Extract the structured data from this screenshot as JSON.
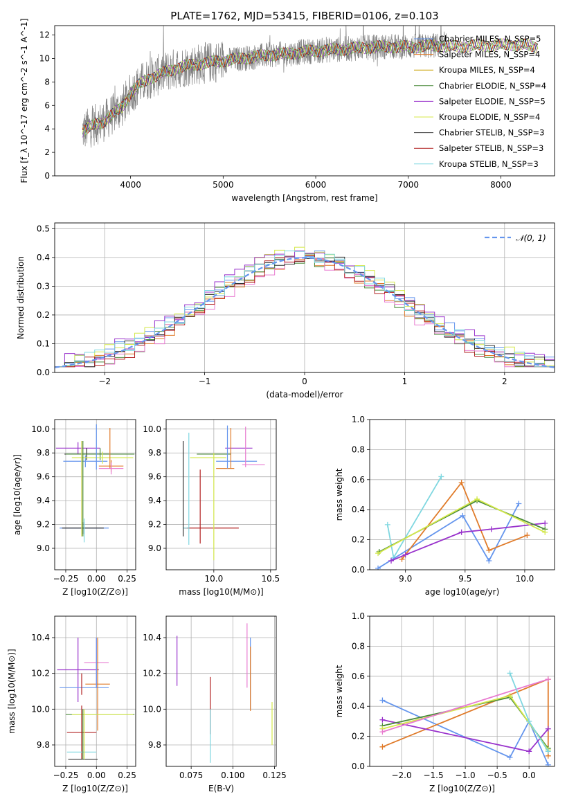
{
  "figure_title": "PLATE=1762, MJD=53415, FIBERID=0106, z=0.103",
  "chart_data": [
    {
      "type": "line",
      "title": "PLATE=1762, MJD=53415, FIBERID=0106, z=0.103",
      "xlabel": "wavelength [Angstrom, rest frame]",
      "ylabel": "Flux [f_λ 10^-17 erg cm^-2 s^-1 A^-1]",
      "xlim": [
        3180,
        8580
      ],
      "ylim": [
        0,
        12.8
      ],
      "xticks": [
        4000,
        5000,
        6000,
        7000,
        8000
      ],
      "yticks": [
        0,
        2,
        4,
        6,
        8,
        10,
        12
      ],
      "grid": false,
      "legend_position": "right",
      "spectrum_sketch": {
        "x": [
          3480,
          3600,
          3700,
          3800,
          3900,
          4000,
          4100,
          4200,
          4300,
          4500,
          4700,
          4900,
          5100,
          5300,
          5500,
          5700,
          5900,
          6100,
          6300,
          6500,
          6700,
          6900,
          7100,
          7300,
          7500,
          7700,
          7900,
          8100,
          8300,
          8400
        ],
        "y": [
          3.8,
          4.3,
          4.6,
          5.2,
          5.8,
          7.0,
          7.8,
          8.3,
          8.6,
          9.2,
          9.5,
          9.7,
          9.9,
          10.1,
          10.3,
          10.4,
          10.6,
          10.7,
          10.8,
          10.9,
          11.0,
          11.0,
          11.0,
          11.1,
          11.0,
          11.1,
          11.1,
          11.2,
          11.1,
          11.0
        ]
      },
      "series": [
        {
          "name": "Chabrier MILES, N_SSP=5",
          "color": "#6495ed"
        },
        {
          "name": "Salpeter MILES, N_SSP=4",
          "color": "#e07b2a"
        },
        {
          "name": "Kroupa MILES, N_SSP=4",
          "color": "#c8a000"
        },
        {
          "name": "Chabrier ELODIE, N_SSP=4",
          "color": "#4a8a3a"
        },
        {
          "name": "Salpeter ELODIE, N_SSP=5",
          "color": "#9932cc"
        },
        {
          "name": "Kroupa ELODIE, N_SSP=4",
          "color": "#d4e84a"
        },
        {
          "name": "Chabrier STELIB, N_SSP=3",
          "color": "#333333"
        },
        {
          "name": "Salpeter STELIB, N_SSP=3",
          "color": "#b22222"
        },
        {
          "name": "Kroupa STELIB, N_SSP=3",
          "color": "#7fd7e0"
        }
      ]
    },
    {
      "type": "line",
      "title": "",
      "xlabel": "(data-model)/error",
      "ylabel": "Normed distribution",
      "xlim": [
        -2.5,
        2.5
      ],
      "ylim": [
        0,
        0.52
      ],
      "xticks": [
        -2,
        -1,
        0,
        1,
        2
      ],
      "yticks": [
        0.0,
        0.1,
        0.2,
        0.3,
        0.4,
        0.5
      ],
      "grid": true,
      "legend_position": "top-right",
      "legend": [
        "N(0,1)"
      ],
      "gaussian": {
        "mean": 0,
        "sigma": 1,
        "color": "#6495ed",
        "style": "dashed"
      },
      "histograms": [
        {
          "color": "#6495ed",
          "offset": 0.01
        },
        {
          "color": "#e07b2a",
          "offset": -0.012
        },
        {
          "color": "#d4e84a",
          "offset": 0.015
        },
        {
          "color": "#4a8a3a",
          "offset": -0.006
        },
        {
          "color": "#9932cc",
          "offset": 0.022
        },
        {
          "color": "#e87ad0",
          "offset": -0.018
        },
        {
          "color": "#333333",
          "offset": 0.004
        },
        {
          "color": "#b22222",
          "offset": -0.01
        },
        {
          "color": "#7fd7e0",
          "offset": 0.008
        }
      ]
    },
    {
      "type": "scatter",
      "xlabel": "Z [log10(Z/Z⊙)]",
      "ylabel": "age [log10(age/yr)]",
      "xlim": [
        -0.34,
        0.32
      ],
      "ylim": [
        8.82,
        10.08
      ],
      "xticks": [
        -0.25,
        0.0,
        0.25
      ],
      "yticks": [
        9.0,
        9.2,
        9.4,
        9.6,
        9.8,
        10.0
      ],
      "grid": true,
      "points": [
        {
          "x": -0.15,
          "y": 9.84,
          "xerr": 0.18,
          "yerr": 0.05,
          "color": "#9932cc"
        },
        {
          "x": -0.09,
          "y": 9.73,
          "xerr": 0.18,
          "yerr": 0.05,
          "color": "#6495ed"
        },
        {
          "x": -0.08,
          "y": 9.79,
          "xerr": 0.18,
          "yerr": 0.05,
          "color": "#333333"
        },
        {
          "x": 0.03,
          "y": 9.79,
          "xerr": 0.28,
          "yerr": 0.05,
          "color": "#4a8a3a"
        },
        {
          "x": 0.05,
          "y": 9.76,
          "xerr": 0.25,
          "yerr": 0.05,
          "color": "#d4e84a"
        },
        {
          "x": 0.12,
          "y": 9.69,
          "xerr": 0.1,
          "yerr": 0.05,
          "color": "#e07b2a"
        },
        {
          "x": 0.12,
          "y": 9.67,
          "xerr": 0.1,
          "yerr": 0.05,
          "color": "#e87ad0"
        },
        {
          "x": -0.1,
          "y": 9.17,
          "xerr": 0.2,
          "yerr": 0.05,
          "color": "#6495ed"
        },
        {
          "x": -0.11,
          "y": 9.17,
          "xerr": 0.17,
          "yerr": 0.05,
          "color": "#333333"
        },
        {
          "x": -0.12,
          "y": 9.5,
          "xerr": 0.0,
          "yerr": 0.4,
          "color": "#9932cc"
        },
        {
          "x": -0.11,
          "y": 9.5,
          "xerr": 0.0,
          "yerr": 0.4,
          "color": "#4a8a3a"
        },
        {
          "x": 0.0,
          "y": 9.85,
          "xerr": 0.0,
          "yerr": 0.19,
          "color": "#6495ed"
        },
        {
          "x": 0.11,
          "y": 9.84,
          "xerr": 0.0,
          "yerr": 0.17,
          "color": "#e07b2a"
        },
        {
          "x": -0.12,
          "y": 9.5,
          "xerr": 0.0,
          "yerr": 0.4,
          "color": "#d4e84a"
        },
        {
          "x": -0.1,
          "y": 9.15,
          "xerr": 0.0,
          "yerr": 0.1,
          "color": "#7fd7e0"
        }
      ]
    },
    {
      "type": "scatter",
      "xlabel": "mass [log10(M/M⊙)]",
      "ylabel": "",
      "xlim": [
        9.58,
        10.55
      ],
      "ylim": [
        8.82,
        10.08
      ],
      "xticks": [
        10.0,
        10.5
      ],
      "yticks": [
        9.0,
        9.2,
        9.4,
        9.6,
        9.8,
        10.0
      ],
      "grid": true,
      "points": [
        {
          "x": 10.0,
          "y": 9.79,
          "xerr": 0.15,
          "yerr": 0.0,
          "color": "#4a8a3a"
        },
        {
          "x": 9.95,
          "y": 9.76,
          "xerr": 0.16,
          "yerr": 0.0,
          "color": "#d4e84a"
        },
        {
          "x": 10.2,
          "y": 9.73,
          "xerr": 0.18,
          "yerr": 0.0,
          "color": "#6495ed"
        },
        {
          "x": 10.22,
          "y": 9.84,
          "xerr": 0.12,
          "yerr": 0.0,
          "color": "#9932cc"
        },
        {
          "x": 10.35,
          "y": 9.7,
          "xerr": 0.1,
          "yerr": 0.0,
          "color": "#e87ad0"
        },
        {
          "x": 10.1,
          "y": 9.67,
          "xerr": 0.08,
          "yerr": 0.0,
          "color": "#e07b2a"
        },
        {
          "x": 9.98,
          "y": 9.17,
          "xerr": 0.24,
          "yerr": 0.0,
          "color": "#b22222"
        },
        {
          "x": 9.75,
          "y": 9.17,
          "xerr": 0.02,
          "yerr": 0.0,
          "color": "#7fd7e0"
        },
        {
          "x": 9.73,
          "y": 9.5,
          "xerr": 0.0,
          "yerr": 0.4,
          "color": "#333333"
        },
        {
          "x": 9.78,
          "y": 9.5,
          "xerr": 0.0,
          "yerr": 0.47,
          "color": "#7fd7e0"
        },
        {
          "x": 9.88,
          "y": 9.35,
          "xerr": 0.0,
          "yerr": 0.31,
          "color": "#b22222"
        },
        {
          "x": 10.0,
          "y": 9.35,
          "xerr": 0.0,
          "yerr": 0.45,
          "color": "#d4e84a"
        },
        {
          "x": 10.12,
          "y": 9.85,
          "xerr": 0.0,
          "yerr": 0.18,
          "color": "#6495ed"
        },
        {
          "x": 10.15,
          "y": 9.84,
          "xerr": 0.0,
          "yerr": 0.17,
          "color": "#e07b2a"
        },
        {
          "x": 10.28,
          "y": 9.85,
          "xerr": 0.0,
          "yerr": 0.17,
          "color": "#e87ad0"
        }
      ]
    },
    {
      "type": "line",
      "xlabel": "age log10(age/yr)",
      "ylabel": "mass weight",
      "xlim": [
        8.7,
        10.25
      ],
      "ylim": [
        0.0,
        1.0
      ],
      "xticks": [
        9.0,
        9.5,
        10.0
      ],
      "yticks": [
        0.0,
        0.2,
        0.4,
        0.6,
        0.8,
        1.0
      ],
      "grid": true,
      "series": [
        {
          "color": "#7fd7e0",
          "x": [
            8.85,
            8.9,
            9.3
          ],
          "y": [
            0.3,
            0.08,
            0.62
          ]
        },
        {
          "color": "#6495ed",
          "x": [
            8.77,
            9.48,
            9.7,
            9.95
          ],
          "y": [
            0.01,
            0.36,
            0.06,
            0.44
          ]
        },
        {
          "color": "#e07b2a",
          "x": [
            8.97,
            9.47,
            9.7,
            10.02
          ],
          "y": [
            0.07,
            0.58,
            0.13,
            0.23
          ]
        },
        {
          "color": "#9932cc",
          "x": [
            8.88,
            9.0,
            9.47,
            9.72,
            10.17
          ],
          "y": [
            0.06,
            0.1,
            0.25,
            0.27,
            0.31
          ]
        },
        {
          "color": "#4a8a3a",
          "x": [
            8.78,
            9.6,
            10.17
          ],
          "y": [
            0.12,
            0.46,
            0.27
          ]
        },
        {
          "color": "#d4e84a",
          "x": [
            8.77,
            9.6,
            10.17
          ],
          "y": [
            0.11,
            0.47,
            0.25
          ]
        }
      ]
    },
    {
      "type": "scatter",
      "xlabel": "Z [log10(Z/Z⊙)]",
      "ylabel": "mass [log10(M/M⊙)]",
      "xlim": [
        -0.34,
        0.32
      ],
      "ylim": [
        9.68,
        10.52
      ],
      "xticks": [
        -0.25,
        0.0,
        0.25
      ],
      "yticks": [
        9.8,
        10.0,
        10.2,
        10.4
      ],
      "grid": true,
      "points": [
        {
          "x": -0.15,
          "y": 10.22,
          "xerr": 0.17,
          "yerr": 0.18,
          "color": "#9932cc"
        },
        {
          "x": -0.1,
          "y": 10.12,
          "xerr": 0.2,
          "yerr": 0.0,
          "color": "#6495ed"
        },
        {
          "x": -0.12,
          "y": 10.14,
          "xerr": 0.0,
          "yerr": 0.06,
          "color": "#b22222"
        },
        {
          "x": 0.0,
          "y": 10.26,
          "xerr": 0.1,
          "yerr": 0.14,
          "color": "#e87ad0"
        },
        {
          "x": 0.01,
          "y": 10.14,
          "xerr": 0.1,
          "yerr": 0.26,
          "color": "#e07b2a"
        },
        {
          "x": 0.0,
          "y": 10.26,
          "xerr": 0.0,
          "yerr": 0.14,
          "color": "#6495ed"
        },
        {
          "x": 0.03,
          "y": 9.97,
          "xerr": 0.28,
          "yerr": 0.0,
          "color": "#4a8a3a"
        },
        {
          "x": 0.05,
          "y": 9.97,
          "xerr": 0.25,
          "yerr": 0.0,
          "color": "#d4e84a"
        },
        {
          "x": -0.12,
          "y": 9.87,
          "xerr": 0.12,
          "yerr": 0.15,
          "color": "#b22222"
        },
        {
          "x": -0.12,
          "y": 9.76,
          "xerr": 0.12,
          "yerr": 0.0,
          "color": "#7fd7e0"
        },
        {
          "x": -0.11,
          "y": 9.72,
          "xerr": 0.12,
          "yerr": 0.0,
          "color": "#333333"
        },
        {
          "x": -0.11,
          "y": 9.86,
          "xerr": 0.0,
          "yerr": 0.14,
          "color": "#4a8a3a"
        },
        {
          "x": -0.1,
          "y": 9.86,
          "xerr": 0.0,
          "yerr": 0.14,
          "color": "#d4e84a"
        }
      ]
    },
    {
      "type": "scatter",
      "xlabel": "E(B-V)",
      "ylabel": "",
      "xlim": [
        0.06,
        0.126
      ],
      "ylim": [
        9.68,
        10.52
      ],
      "xticks": [
        0.075,
        0.1,
        0.125
      ],
      "yticks": [
        9.8,
        10.0,
        10.2,
        10.4
      ],
      "grid": true,
      "points": [
        {
          "x": 0.0665,
          "y": 10.27,
          "yerr": 0.14,
          "color": "#9932cc"
        },
        {
          "x": 0.0865,
          "y": 10.02,
          "yerr": 0.16,
          "color": "#b22222"
        },
        {
          "x": 0.0865,
          "y": 9.85,
          "yerr": 0.15,
          "color": "#7fd7e0"
        },
        {
          "x": 0.1085,
          "y": 10.3,
          "yerr": 0.18,
          "color": "#e87ad0"
        },
        {
          "x": 0.1105,
          "y": 10.2,
          "yerr": 0.2,
          "color": "#6495ed"
        },
        {
          "x": 0.1105,
          "y": 10.17,
          "yerr": 0.18,
          "color": "#e07b2a"
        },
        {
          "x": 0.1235,
          "y": 9.92,
          "yerr": 0.12,
          "color": "#d4e84a"
        }
      ]
    },
    {
      "type": "line",
      "xlabel": "Z [log10(Z/Z⊙)]",
      "ylabel": "mass weight",
      "xlim": [
        -2.5,
        0.4
      ],
      "ylim": [
        0.0,
        1.0
      ],
      "xticks": [
        -2.0,
        -1.5,
        -1.0,
        -0.5,
        0.0
      ],
      "yticks": [
        0.0,
        0.2,
        0.4,
        0.6,
        0.8,
        1.0
      ],
      "grid": true,
      "series": [
        {
          "color": "#6495ed",
          "x": [
            -2.3,
            -0.3,
            0.0,
            0.3
          ],
          "y": [
            0.44,
            0.06,
            0.3,
            0.01
          ]
        },
        {
          "color": "#e07b2a",
          "x": [
            -2.3,
            0.3,
            0.3
          ],
          "y": [
            0.13,
            0.58,
            0.07
          ]
        },
        {
          "color": "#9932cc",
          "x": [
            -2.3,
            0.0,
            0.3
          ],
          "y": [
            0.31,
            0.1,
            0.25
          ]
        },
        {
          "color": "#4a8a3a",
          "x": [
            -2.3,
            -0.3,
            0.3
          ],
          "y": [
            0.27,
            0.46,
            0.12
          ]
        },
        {
          "color": "#d4e84a",
          "x": [
            -2.3,
            -0.3,
            0.3
          ],
          "y": [
            0.25,
            0.47,
            0.11
          ]
        },
        {
          "color": "#e87ad0",
          "x": [
            -2.3,
            0.3
          ],
          "y": [
            0.23,
            0.58
          ]
        },
        {
          "color": "#7fd7e0",
          "x": [
            -0.3,
            0.0,
            0.3
          ],
          "y": [
            0.62,
            0.3,
            0.1
          ]
        }
      ]
    }
  ]
}
